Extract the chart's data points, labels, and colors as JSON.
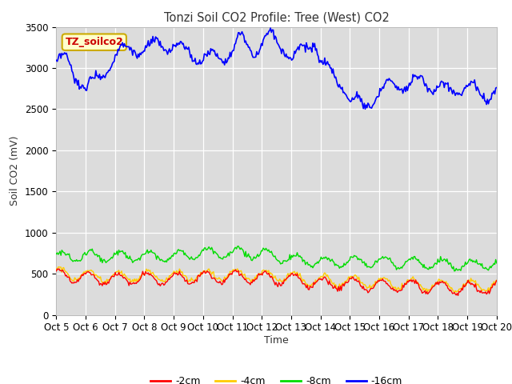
{
  "title": "Tonzi Soil CO2 Profile: Tree (West) CO2",
  "ylabel": "Soil CO2 (mV)",
  "xlabel": "Time",
  "ylim": [
    0,
    3500
  ],
  "yticks": [
    0,
    500,
    1000,
    1500,
    2000,
    2500,
    3000,
    3500
  ],
  "xtick_labels": [
    "Oct 5",
    "Oct 6",
    "Oct 7",
    "Oct 8",
    "Oct 9",
    "Oct 10",
    "Oct 11",
    "Oct 12",
    "Oct 13",
    "Oct 14",
    "Oct 15",
    "Oct 16",
    "Oct 17",
    "Oct 18",
    "Oct 19",
    "Oct 20"
  ],
  "bg_color": "#dcdcdc",
  "fig_color": "#ffffff",
  "legend_label": "TZ_soilco2",
  "legend_box_color": "#ffffcc",
  "legend_box_edge": "#ccaa00",
  "series_colors": {
    "d2cm": "#ff0000",
    "d4cm": "#ffcc00",
    "d8cm": "#00dd00",
    "d16cm": "#0000ff"
  },
  "legend_entries": [
    {
      "label": "-2cm",
      "color": "#ff0000"
    },
    {
      "label": "-4cm",
      "color": "#ffcc00"
    },
    {
      "label": "-8cm",
      "color": "#00dd00"
    },
    {
      "label": "-16cm",
      "color": "#0000ff"
    }
  ]
}
